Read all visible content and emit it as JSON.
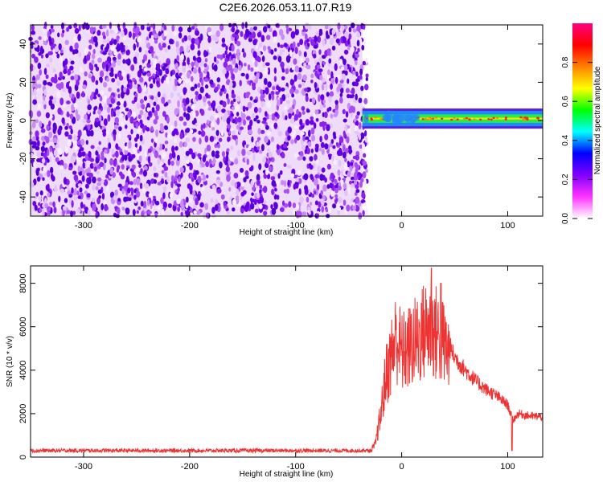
{
  "title": "C2E6.2026.053.11.07.R19",
  "chart_data": [
    {
      "type": "heatmap",
      "xlabel": "Height of straight line (km)",
      "ylabel": "Frequency (Hz)",
      "xlim": [
        -350,
        133
      ],
      "ylim": [
        -50,
        50
      ],
      "xticks": [
        -300,
        -200,
        -100,
        0,
        100
      ],
      "yticks": [
        -40,
        -20,
        0,
        20,
        40
      ],
      "noise_region_x": [
        -350,
        -37
      ],
      "carrier": {
        "x_range": [
          -37,
          133
        ],
        "frequency_hz": 1,
        "bandwidth_hz": 4
      },
      "colorbar": {
        "label": "Normalized spectral amplitude",
        "range": [
          0,
          1
        ],
        "ticks": [
          0.0,
          0.2,
          0.4,
          0.6,
          0.8
        ],
        "colormap": [
          "#ffffff",
          "#ff33ff",
          "#8000ff",
          "#0000ff",
          "#00ffff",
          "#00ff00",
          "#ffff00",
          "#ff8000",
          "#ff0000",
          "#ff0080"
        ]
      }
    },
    {
      "type": "line",
      "xlabel": "Height of straight line (km)",
      "ylabel": "SNR (10 * v/v)",
      "xlim": [
        -350,
        133
      ],
      "ylim": [
        0,
        8800
      ],
      "xticks": [
        -300,
        -200,
        -100,
        0,
        100
      ],
      "yticks": [
        0,
        2000,
        4000,
        6000,
        8000
      ],
      "color": "#ee3333",
      "envelope": [
        {
          "x": -350,
          "y": 300
        },
        {
          "x": -100,
          "y": 300
        },
        {
          "x": -30,
          "y": 300
        },
        {
          "x": -25,
          "y": 600
        },
        {
          "x": -20,
          "y": 2000
        },
        {
          "x": -15,
          "y": 4000
        },
        {
          "x": -10,
          "y": 5000
        },
        {
          "x": -5,
          "y": 6000
        },
        {
          "x": 0,
          "y": 5200
        },
        {
          "x": 5,
          "y": 5300
        },
        {
          "x": 10,
          "y": 5600
        },
        {
          "x": 15,
          "y": 5800
        },
        {
          "x": 20,
          "y": 6200
        },
        {
          "x": 25,
          "y": 6400
        },
        {
          "x": 30,
          "y": 6300
        },
        {
          "x": 35,
          "y": 6000
        },
        {
          "x": 40,
          "y": 5600
        },
        {
          "x": 50,
          "y": 4600
        },
        {
          "x": 60,
          "y": 4000
        },
        {
          "x": 70,
          "y": 3500
        },
        {
          "x": 80,
          "y": 3100
        },
        {
          "x": 90,
          "y": 2800
        },
        {
          "x": 100,
          "y": 2400
        },
        {
          "x": 105,
          "y": 1700
        },
        {
          "x": 110,
          "y": 2000
        },
        {
          "x": 120,
          "y": 1900
        },
        {
          "x": 133,
          "y": 1850
        }
      ],
      "peaks": [
        {
          "x": 28,
          "y": 8700
        },
        {
          "x": 37,
          "y": 8000
        },
        {
          "x": 104,
          "y": 300
        }
      ]
    }
  ]
}
